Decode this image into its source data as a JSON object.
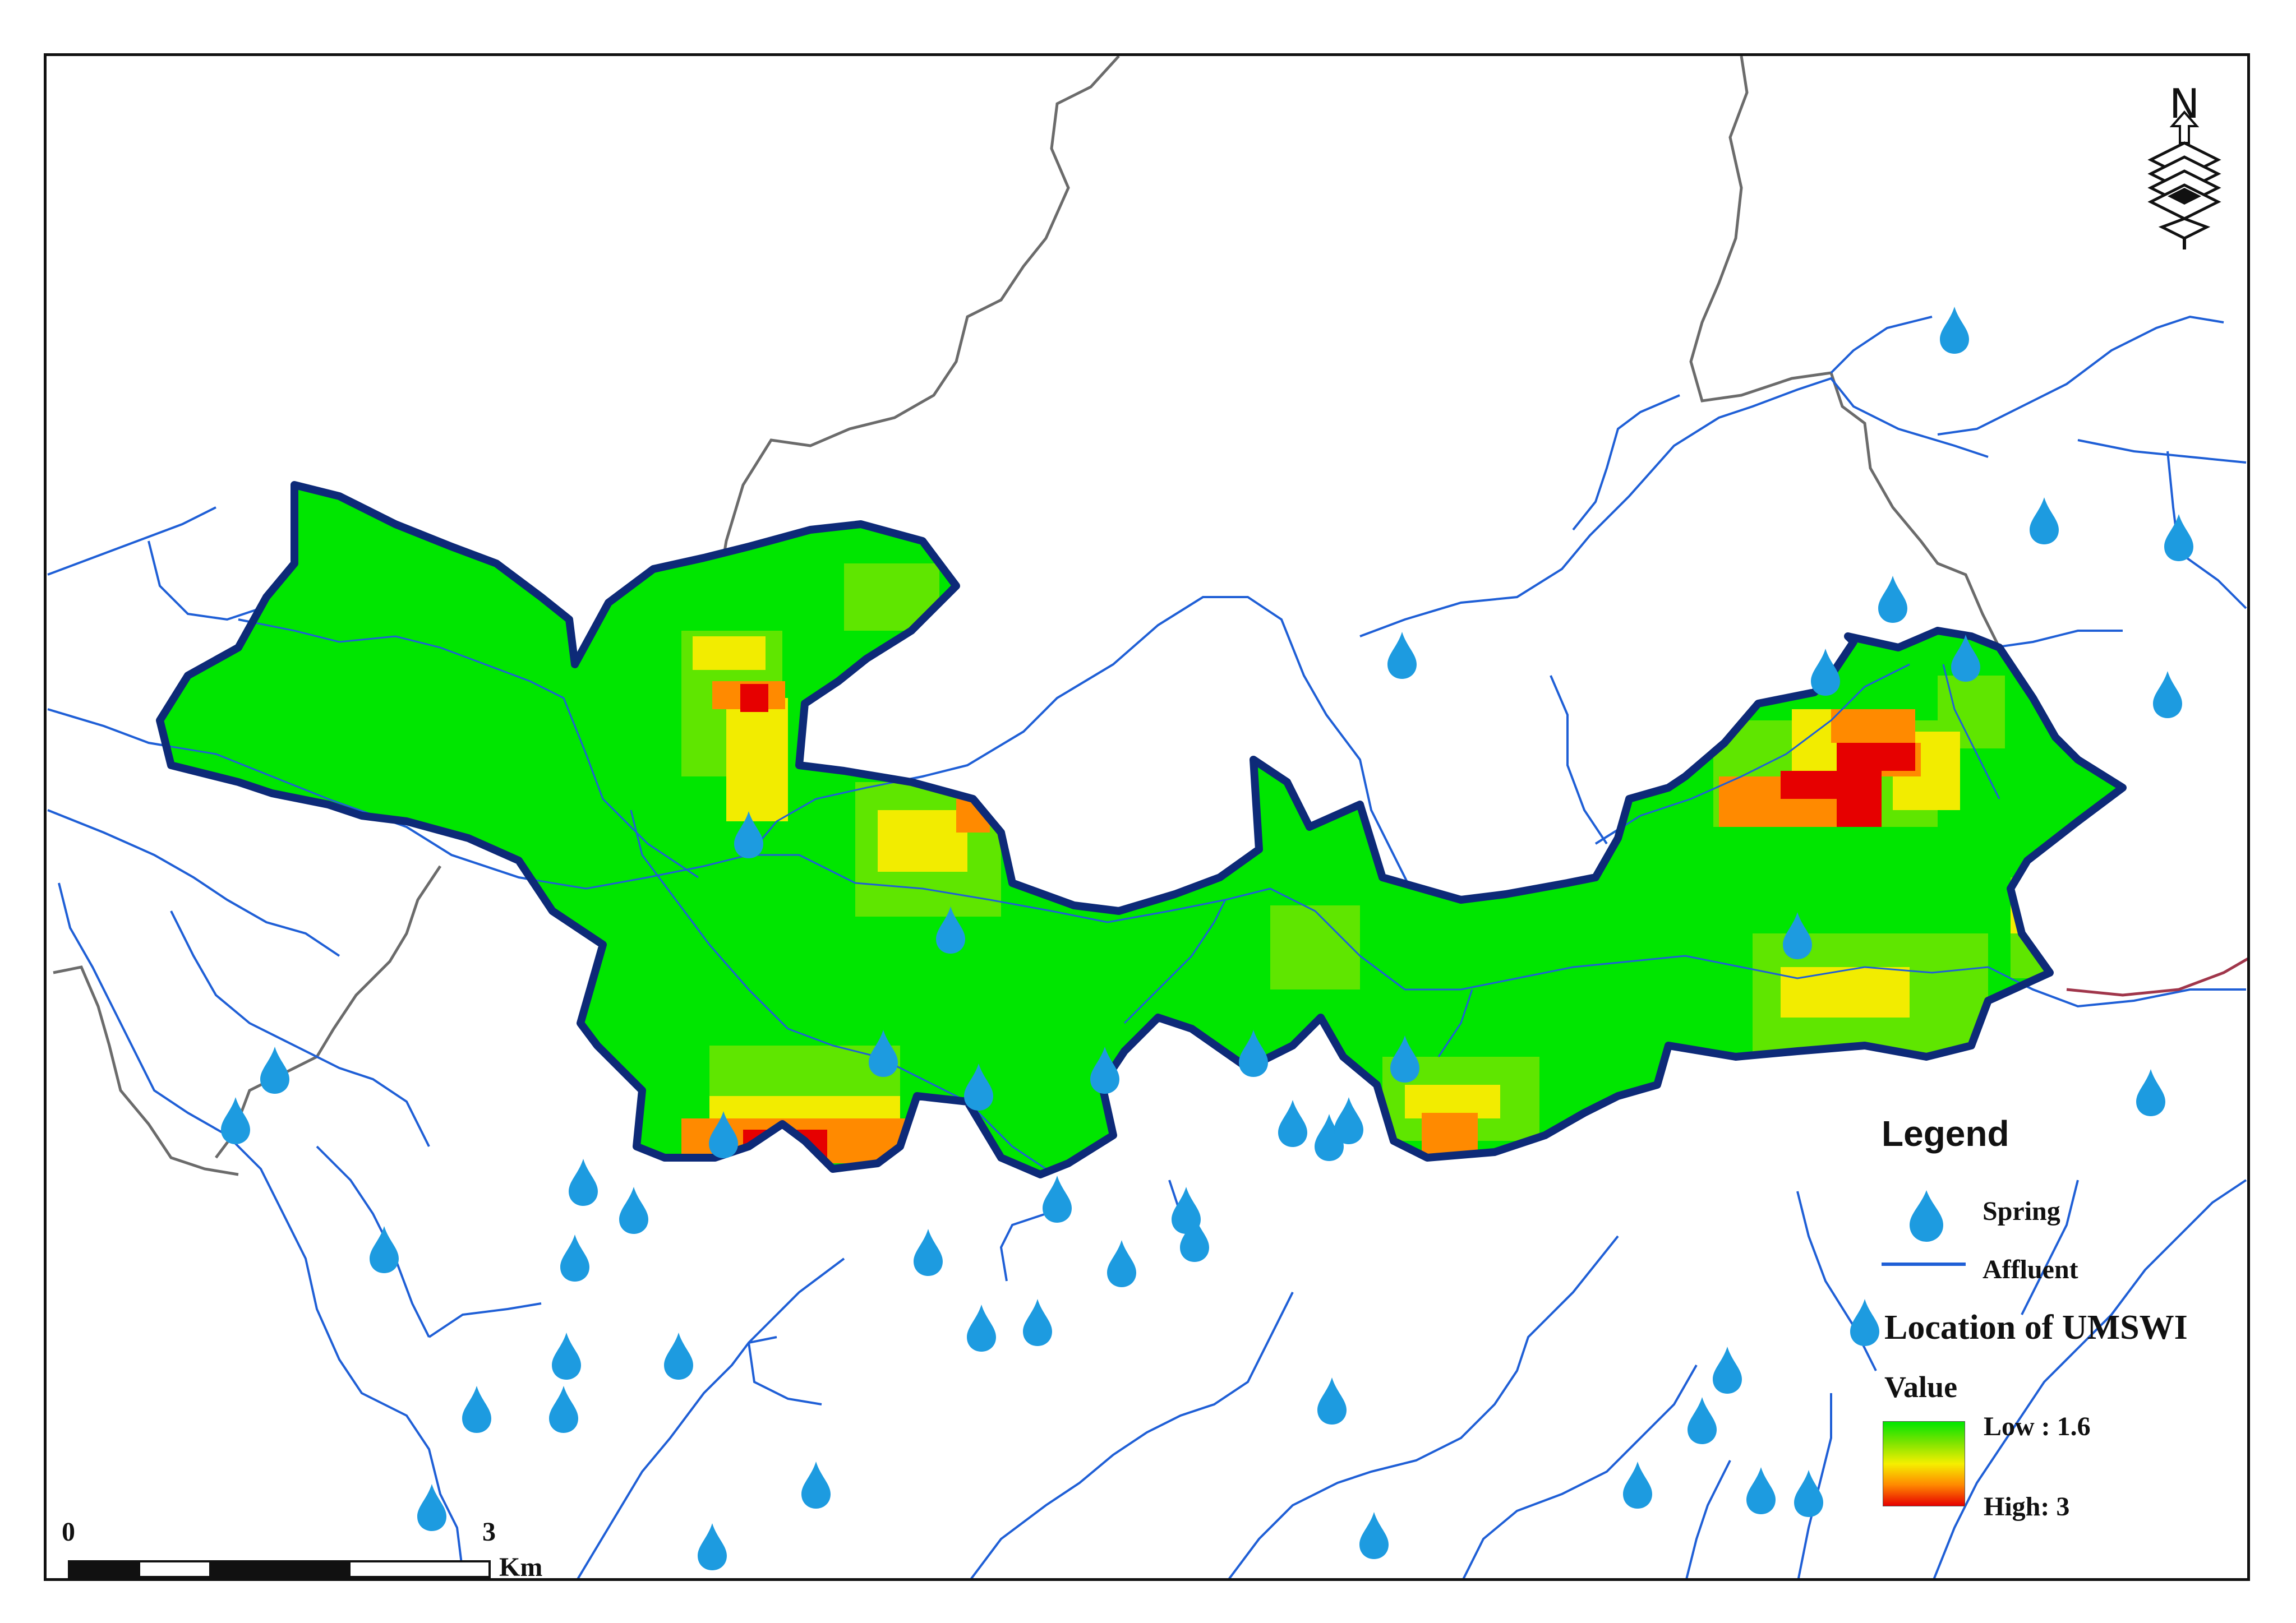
{
  "legend": {
    "title": "Legend",
    "spring_label": "Spring",
    "affluent_label": "Affluent",
    "umswi_title": "Location of UMSWI",
    "value_title": "Value",
    "low_label": "Low : 1.6",
    "high_label": "High: 3",
    "spring_icon": "water-drop-icon",
    "affluent_color": "#1f5fd6",
    "ramp_colors": [
      "#00e600",
      "#7ee400",
      "#f5ef00",
      "#ff8a00",
      "#e60000"
    ]
  },
  "north_arrow": {
    "label": "N",
    "icon": "north-arrow-icon"
  },
  "scale_bar": {
    "start_label": "0",
    "end_label": "3",
    "unit_label": "Km"
  },
  "colors": {
    "boundary": "#0d2a78",
    "affluent": "#1f5fd6",
    "ridge": "#6b6b6b",
    "spring": "#1d9be0",
    "base_green": "#00e600"
  }
}
